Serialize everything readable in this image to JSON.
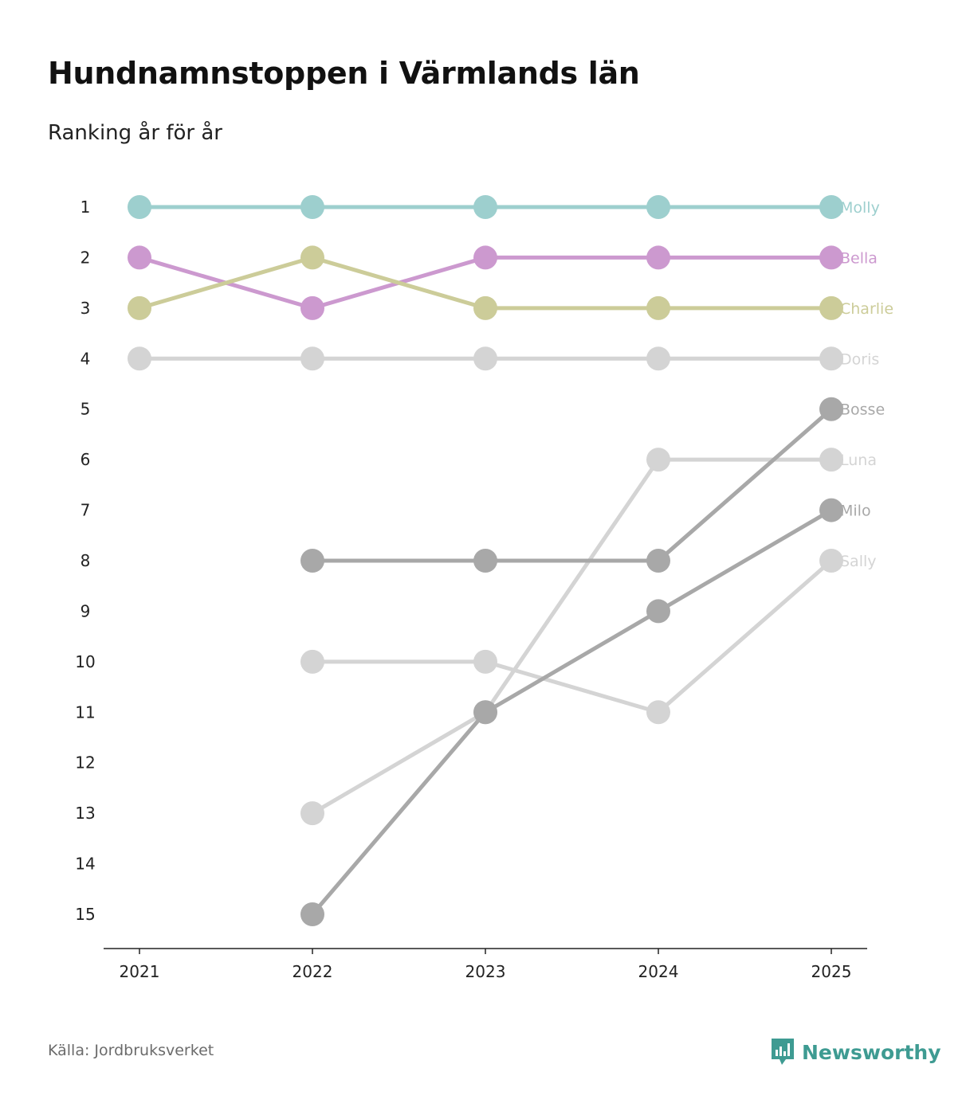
{
  "header": {
    "title": "Hundnamnstoppen i Värmlands län",
    "subtitle": "Ranking år för år"
  },
  "footer": {
    "source": "Källa: Jordbruksverket",
    "brand": "Newsworthy",
    "brand_icon": "newsworthy-logo-icon"
  },
  "colors": {
    "Molly": "#9dcfce",
    "Bella": "#cc99cf",
    "Charlie": "#cccc99",
    "light_grey": "#d4d4d4",
    "dark_grey": "#a8a8a8",
    "axis": "#222222",
    "brand": "#3e9b92"
  },
  "chart_data": {
    "type": "line",
    "title": "Hundnamnstoppen i Värmlands län",
    "subtitle": "Ranking år för år",
    "xlabel": "",
    "ylabel": "",
    "x": [
      "2021",
      "2022",
      "2023",
      "2024",
      "2025"
    ],
    "y_ticks": [
      "1",
      "2",
      "3",
      "4",
      "5",
      "6",
      "7",
      "8",
      "9",
      "10",
      "11",
      "12",
      "13",
      "14",
      "15"
    ],
    "ylim": [
      1,
      15
    ],
    "y_inverted": true,
    "series": [
      {
        "name": "Molly",
        "color_key": "Molly",
        "values": [
          1,
          1,
          1,
          1,
          1
        ]
      },
      {
        "name": "Bella",
        "color_key": "Bella",
        "values": [
          2,
          3,
          2,
          2,
          2
        ]
      },
      {
        "name": "Charlie",
        "color_key": "Charlie",
        "values": [
          3,
          2,
          3,
          3,
          3
        ]
      },
      {
        "name": "Doris",
        "color_key": "light_grey",
        "values": [
          4,
          4,
          4,
          4,
          4
        ]
      },
      {
        "name": "Bosse",
        "color_key": "dark_grey",
        "values": [
          null,
          8,
          8,
          8,
          5
        ]
      },
      {
        "name": "Luna",
        "color_key": "light_grey",
        "values": [
          null,
          13,
          11,
          6,
          6
        ]
      },
      {
        "name": "Milo",
        "color_key": "dark_grey",
        "values": [
          null,
          15,
          11,
          9,
          7
        ]
      },
      {
        "name": "Sally",
        "color_key": "light_grey",
        "values": [
          null,
          10,
          10,
          11,
          8
        ]
      }
    ]
  }
}
